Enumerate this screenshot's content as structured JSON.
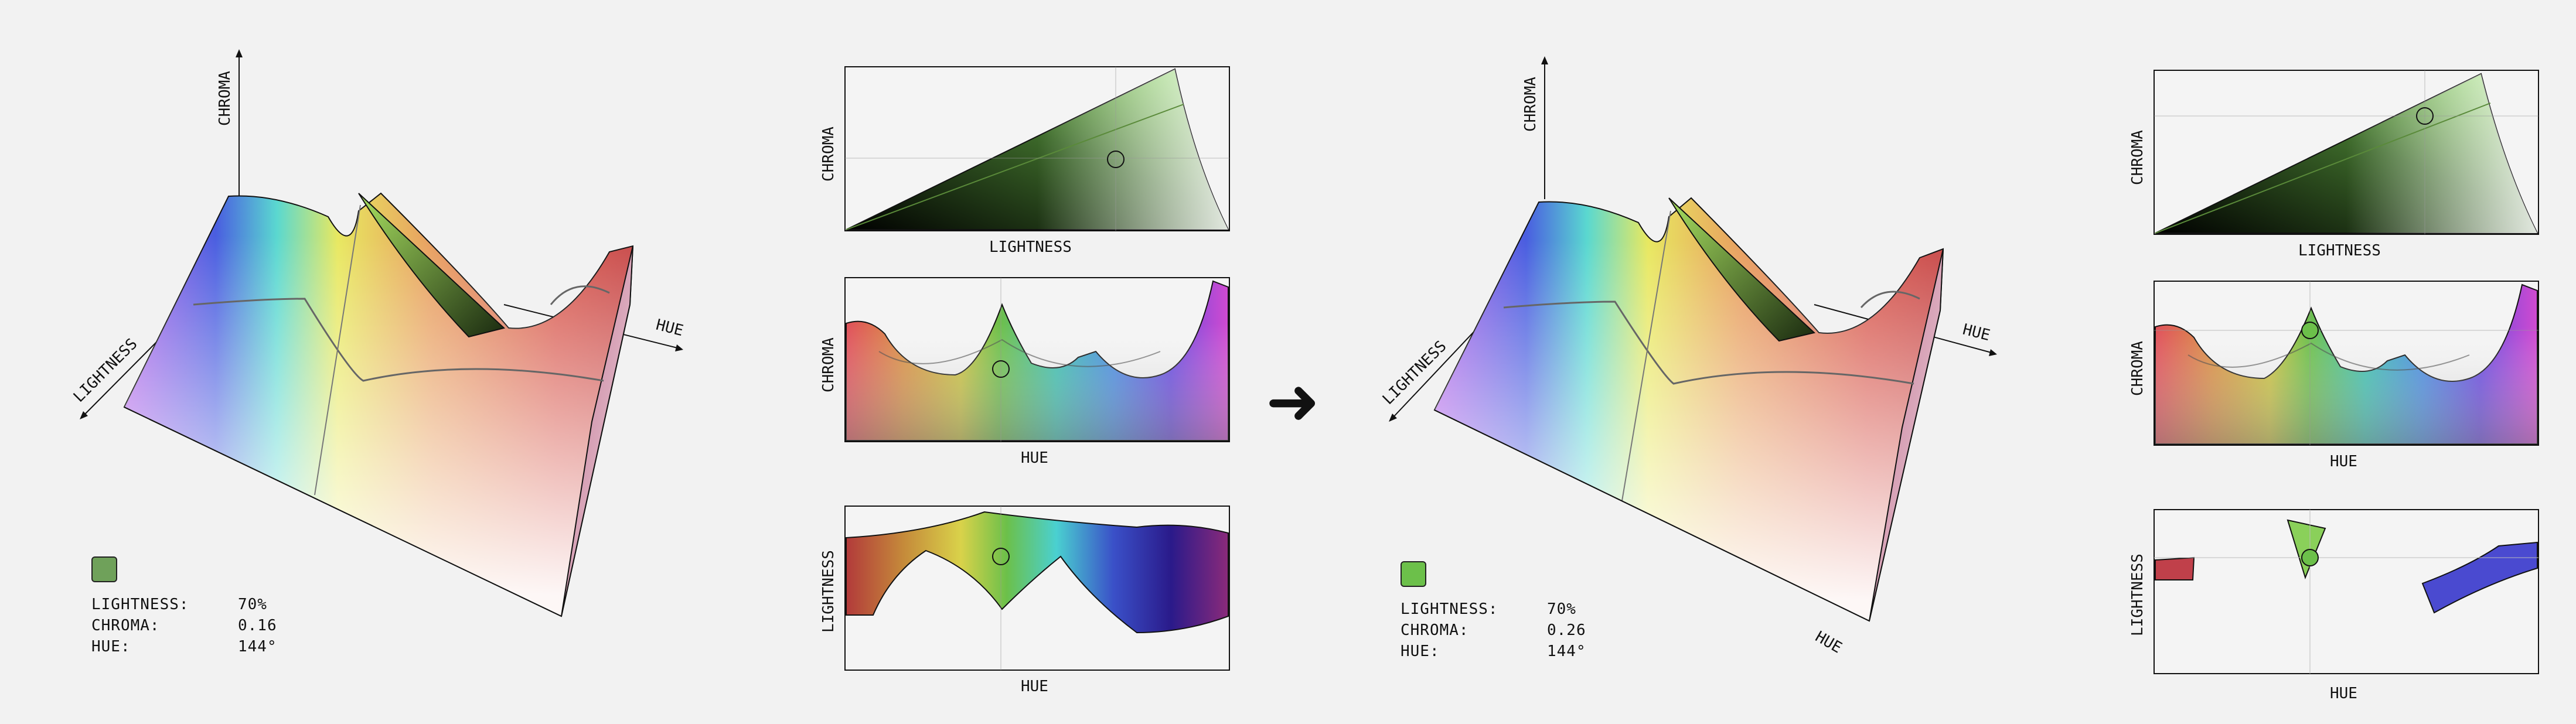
{
  "axes": {
    "chroma": "CHROMA",
    "lightness": "LIGHTNESS",
    "hue": "HUE"
  },
  "arrow": "➜",
  "left_color": {
    "swatch_hex": "#6fa15a",
    "lightness_label": "LIGHTNESS:",
    "lightness_value": "70%",
    "chroma_label": "CHROMA:",
    "chroma_value": "0.16",
    "hue_label": "HUE:",
    "hue_value": "144°"
  },
  "right_color": {
    "swatch_hex": "#6cc04a",
    "lightness_label": "LIGHTNESS:",
    "lightness_value": "70%",
    "chroma_label": "CHROMA:",
    "chroma_value": "0.26",
    "hue_label": "HUE:",
    "hue_value": "144°"
  }
}
